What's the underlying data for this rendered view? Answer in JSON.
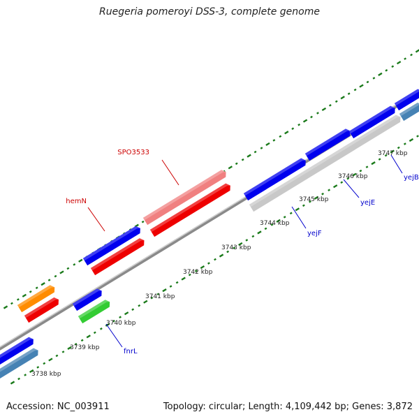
{
  "title": "Ruegeria pomeroyi DSS-3, complete genome",
  "footer": {
    "accession": "Accession: NC_003911",
    "summary": "Topology: circular; Length: 4,109,442 bp; Genes: 3,872"
  },
  "ticks": [
    {
      "label": "3738 kbp"
    },
    {
      "label": "3739 kbp"
    },
    {
      "label": "3740 kbp"
    },
    {
      "label": "3741 kbp"
    },
    {
      "label": "3742 kbp"
    },
    {
      "label": "3743 kbp"
    },
    {
      "label": "3744 kbp"
    },
    {
      "label": "3745 kbp"
    },
    {
      "label": "3746 kbp"
    },
    {
      "label": "3747 kbp"
    }
  ],
  "gene_labels": [
    {
      "text": "SPO3533",
      "color": "#cc0000"
    },
    {
      "text": "hemN",
      "color": "#cc0000"
    },
    {
      "text": "fnrL",
      "color": "#0000cc"
    },
    {
      "text": "yejF",
      "color": "#0000cc"
    },
    {
      "text": "yejE",
      "color": "#0000cc"
    },
    {
      "text": "yejB",
      "color": "#0000cc"
    }
  ],
  "colors": {
    "backbone": "#8a8a8a",
    "blue": "#0000ee",
    "red": "#ee0000",
    "pink": "#f08080",
    "orange": "#ff8c00",
    "green": "#33cc33",
    "steel": "#4682b4",
    "gray": "#c8c8c8",
    "tick": "#1a7a1a"
  }
}
